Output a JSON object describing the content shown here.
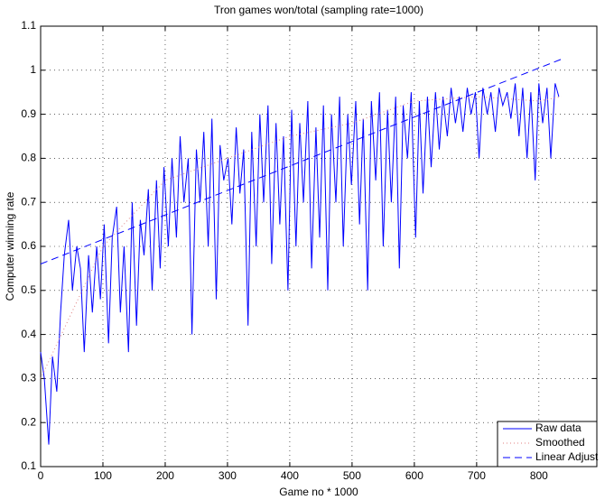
{
  "chart_data": {
    "type": "line",
    "title": "Tron games won/total (sampling rate=1000)",
    "xlabel": "Game no * 1000",
    "ylabel": "Computer winning rate",
    "xlim": [
      0,
      893
    ],
    "ylim": [
      0.1,
      1.1
    ],
    "xticks": [
      0,
      100,
      200,
      300,
      400,
      500,
      600,
      700,
      800
    ],
    "yticks": [
      0.1,
      0.2,
      0.3,
      0.4,
      0.5,
      0.6,
      0.7,
      0.8,
      0.9,
      1,
      1.1
    ],
    "grid": true,
    "legend": "lower right",
    "series": [
      {
        "name": "Raw data",
        "color": "#0000ff",
        "style": "solid",
        "x": [
          0,
          6,
          13,
          19,
          26,
          32,
          38,
          45,
          51,
          58,
          64,
          70,
          77,
          83,
          90,
          96,
          102,
          109,
          115,
          122,
          128,
          134,
          141,
          147,
          154,
          160,
          166,
          173,
          179,
          186,
          192,
          198,
          205,
          211,
          218,
          224,
          230,
          237,
          243,
          250,
          256,
          262,
          269,
          275,
          282,
          288,
          294,
          301,
          307,
          314,
          320,
          326,
          333,
          339,
          346,
          352,
          358,
          365,
          371,
          378,
          384,
          390,
          397,
          403,
          410,
          416,
          422,
          429,
          435,
          442,
          448,
          454,
          461,
          467,
          474,
          480,
          486,
          493,
          499,
          506,
          512,
          518,
          525,
          531,
          538,
          544,
          550,
          557,
          563,
          570,
          576,
          582,
          589,
          595,
          602,
          608,
          614,
          621,
          627,
          634,
          640,
          646,
          653,
          659,
          666,
          672,
          678,
          685,
          691,
          698,
          704,
          710,
          717,
          723,
          730,
          736,
          742,
          749,
          755,
          762,
          768,
          774,
          781,
          787,
          794,
          800,
          806,
          813,
          819,
          826,
          832
        ],
        "values": [
          0.36,
          0.3,
          0.15,
          0.35,
          0.27,
          0.45,
          0.58,
          0.66,
          0.5,
          0.6,
          0.55,
          0.36,
          0.58,
          0.45,
          0.6,
          0.48,
          0.65,
          0.38,
          0.62,
          0.69,
          0.45,
          0.6,
          0.36,
          0.7,
          0.42,
          0.66,
          0.58,
          0.73,
          0.5,
          0.75,
          0.55,
          0.78,
          0.6,
          0.8,
          0.62,
          0.85,
          0.7,
          0.8,
          0.4,
          0.82,
          0.7,
          0.86,
          0.6,
          0.89,
          0.48,
          0.83,
          0.75,
          0.8,
          0.65,
          0.87,
          0.72,
          0.82,
          0.42,
          0.86,
          0.6,
          0.9,
          0.7,
          0.92,
          0.56,
          0.88,
          0.65,
          0.85,
          0.5,
          0.91,
          0.6,
          0.88,
          0.7,
          0.93,
          0.55,
          0.87,
          0.62,
          0.92,
          0.5,
          0.9,
          0.7,
          0.94,
          0.6,
          0.9,
          0.74,
          0.93,
          0.65,
          0.89,
          0.5,
          0.93,
          0.75,
          0.95,
          0.6,
          0.91,
          0.7,
          0.94,
          0.55,
          0.92,
          0.8,
          0.95,
          0.62,
          0.93,
          0.72,
          0.94,
          0.78,
          0.95,
          0.82,
          0.94,
          0.85,
          0.96,
          0.88,
          0.94,
          0.86,
          0.96,
          0.9,
          0.95,
          0.8,
          0.96,
          0.9,
          0.95,
          0.86,
          0.96,
          0.92,
          0.95,
          0.89,
          0.97,
          0.85,
          0.96,
          0.8,
          0.95,
          0.75,
          0.97,
          0.88,
          0.96,
          0.8,
          0.97,
          0.94
        ]
      },
      {
        "name": "Smoothed",
        "color": "#e08080",
        "style": "dotted",
        "x": [
          0,
          100,
          200,
          300,
          400,
          500,
          600,
          700,
          800,
          836
        ],
        "values": [
          0.3,
          0.6,
          0.75,
          0.8,
          0.85,
          0.88,
          0.93,
          0.94,
          0.93,
          0.94
        ]
      },
      {
        "name": "Linear Adjust",
        "color": "#0000ff",
        "style": "dashed",
        "x": [
          0,
          836
        ],
        "values": [
          0.56,
          1.025
        ]
      }
    ]
  }
}
